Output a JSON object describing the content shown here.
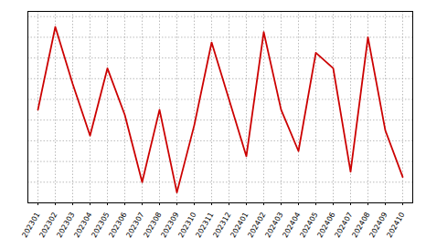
{
  "chart_data": {
    "type": "line",
    "categories": [
      "202301",
      "202302",
      "202303",
      "202304",
      "202305",
      "202306",
      "202307",
      "202308",
      "202309",
      "202310",
      "202311",
      "202312",
      "202401",
      "202402",
      "202403",
      "202404",
      "202405",
      "202406",
      "202407",
      "202408",
      "202409",
      "202410"
    ],
    "values": [
      10,
      90,
      35,
      -15,
      50,
      5,
      -60,
      10,
      -70,
      -5,
      75,
      20,
      -35,
      85,
      10,
      -30,
      65,
      50,
      -50,
      80,
      -10,
      -55
    ],
    "color": "#cc0000",
    "ylim": [
      -80,
      105
    ],
    "yticks": [
      -80,
      -60,
      -40,
      -20,
      0,
      20,
      40,
      60,
      80,
      100
    ],
    "grid": true,
    "tick_labels": "x"
  }
}
